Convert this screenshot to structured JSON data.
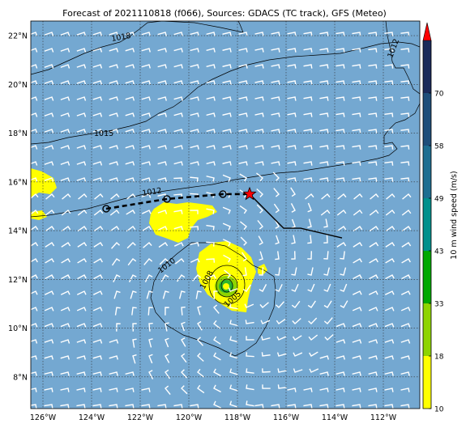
{
  "title": "Forecast of 2021110818 (f066), Sources: GDACS (TC track), GFS (Meteo)",
  "axes": {
    "x_ticks": [
      "126°W",
      "124°W",
      "122°W",
      "120°W",
      "118°W",
      "116°W",
      "114°W",
      "112°W"
    ],
    "y_ticks": [
      "22°N",
      "20°N",
      "18°N",
      "16°N",
      "14°N",
      "12°N",
      "10°N",
      "8°N"
    ]
  },
  "colorbar": {
    "label": "10 m wind speed (m/s)",
    "ticks": [
      "10",
      "18",
      "33",
      "43",
      "49",
      "58",
      "70"
    ],
    "colors": [
      "#ffff00",
      "#8fd400",
      "#00a800",
      "#00908c",
      "#1e6e91",
      "#1e4e7a",
      "#1a2a5a"
    ],
    "extend_color": "#ff0000"
  },
  "colors": {
    "ocean": "#74a8d1",
    "wind_barb": "#ffffff",
    "track_past": "#000000",
    "current_position": "#ff0000"
  },
  "isobars": [
    "1018",
    "1015",
    "1012",
    "1012",
    "1010",
    "1008",
    "1005"
  ],
  "chart_data": {
    "type": "map",
    "lon_range": [
      -126.5,
      -110.5
    ],
    "lat_range": [
      6.7,
      22.6
    ],
    "storm_track": {
      "past_positions": [
        {
          "lon": -123.4,
          "lat": 14.9
        },
        {
          "lon": -120.9,
          "lat": 15.3
        },
        {
          "lon": -118.6,
          "lat": 15.5
        }
      ],
      "current_position": {
        "lon": -117.5,
        "lat": 15.5
      },
      "forecast_path": [
        {
          "lon": -117.5,
          "lat": 15.5
        },
        {
          "lon": -116.8,
          "lat": 14.8
        },
        {
          "lon": -116.1,
          "lat": 14.1
        },
        {
          "lon": -115.4,
          "lat": 14.1
        },
        {
          "lon": -113.7,
          "lat": 13.7
        }
      ]
    }
  }
}
